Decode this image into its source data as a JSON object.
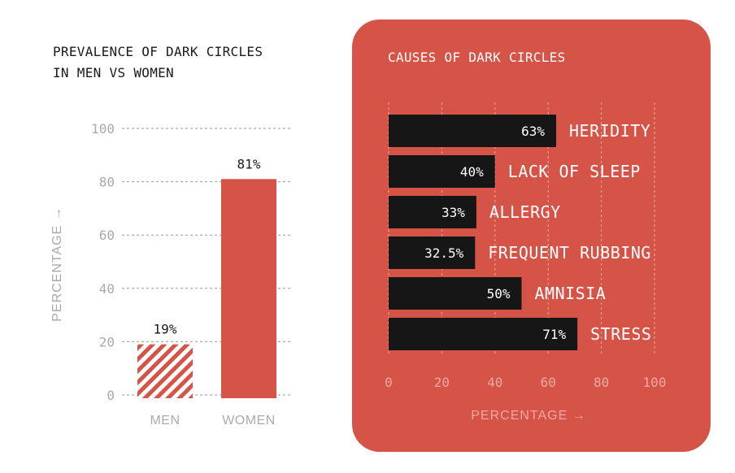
{
  "left_chart": {
    "title_line1": "PREVALENCE OF DARK CIRCLES",
    "title_line2": "IN MEN VS WOMEN",
    "ylabel": "PERCENTAGE",
    "ylabel_arrow": "→"
  },
  "right_chart": {
    "title": "CAUSES OF DARK CIRCLES",
    "xlabel": "PERCENTAGE",
    "xlabel_arrow": "→"
  },
  "colors": {
    "accent_red": "#d55347",
    "bar_dark": "#161616",
    "axis_text_left": "#aaaaaa",
    "axis_text_right": "#f0aaa3"
  },
  "chart_data": [
    {
      "type": "bar",
      "orientation": "vertical",
      "title": "PREVALENCE OF DARK CIRCLES IN MEN VS WOMEN",
      "categories": [
        "MEN",
        "WOMEN"
      ],
      "values": [
        19,
        81
      ],
      "value_labels": [
        "19%",
        "81%"
      ],
      "fill_styles": [
        "hatched",
        "solid"
      ],
      "ylabel": "PERCENTAGE",
      "ylim": [
        0,
        100
      ],
      "yticks": [
        0,
        20,
        40,
        60,
        80,
        100
      ],
      "grid": true
    },
    {
      "type": "bar",
      "orientation": "horizontal",
      "title": "CAUSES OF DARK CIRCLES",
      "categories": [
        "HERIDITY",
        "LACK OF SLEEP",
        "ALLERGY",
        "FREQUENT RUBBING",
        "AMNISIA",
        "STRESS"
      ],
      "values": [
        63,
        40,
        33,
        32.5,
        50,
        71
      ],
      "value_labels": [
        "63%",
        "40%",
        "33%",
        "32.5%",
        "50%",
        "71%"
      ],
      "xlabel": "PERCENTAGE",
      "xlim": [
        0,
        100
      ],
      "xticks": [
        0,
        20,
        40,
        60,
        80,
        100
      ],
      "grid": true
    }
  ]
}
